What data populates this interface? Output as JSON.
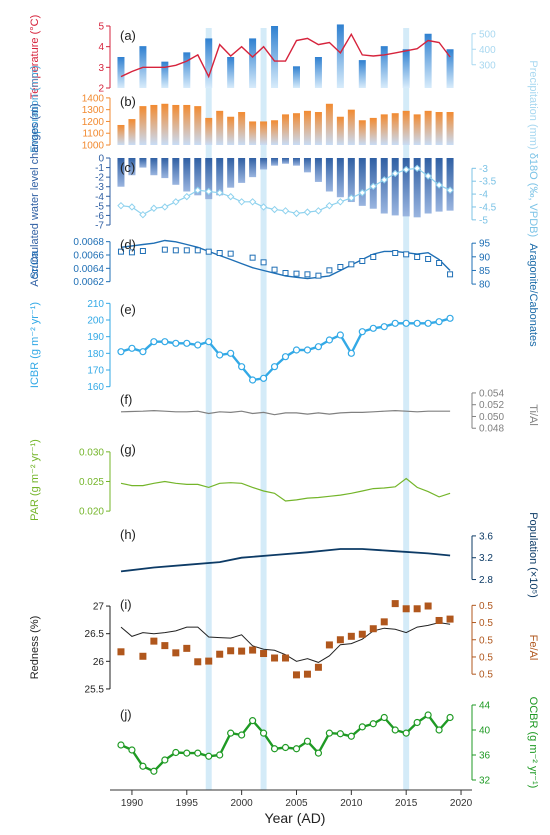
{
  "figure": {
    "xlabel": "Year (AD)",
    "x_ticks": [
      1990,
      1995,
      2000,
      2005,
      2010,
      2015,
      2020
    ],
    "xlim": [
      1988,
      2021
    ],
    "highlight_years": [
      1997,
      2002,
      2015
    ]
  },
  "chart_data": [
    {
      "id": "a",
      "panel_label": "(a)",
      "type": "bar",
      "series": [
        {
          "name": "Temperature",
          "type": "line",
          "axis": "left",
          "color": "#d6233c",
          "ylabel": "Temperature (°C)",
          "ylim": [
            2,
            5
          ],
          "ticks": [
            2,
            3,
            4,
            5
          ],
          "x": [
            1989,
            1990,
            1991,
            1992,
            1993,
            1994,
            1995,
            1996,
            1997,
            1998,
            1999,
            2000,
            2001,
            2002,
            2003,
            2004,
            2005,
            2006,
            2007,
            2008,
            2009,
            2010,
            2011,
            2012,
            2013,
            2014,
            2015,
            2016,
            2017,
            2018,
            2019
          ],
          "values": [
            2.55,
            2.8,
            3.0,
            3.0,
            3.0,
            3.1,
            3.3,
            3.6,
            2.55,
            4.1,
            3.55,
            4.0,
            3.5,
            4.0,
            3.3,
            3.3,
            4.3,
            4.4,
            4.1,
            4.2,
            3.7,
            4.6,
            3.6,
            3.55,
            3.6,
            3.7,
            3.8,
            3.9,
            4.3,
            4.2,
            3.5
          ]
        },
        {
          "name": "Precipitation",
          "type": "bar",
          "axis": "right",
          "color": "#3a8fd8",
          "ylabel": "Precipitation (mm)",
          "ylim": [
            150,
            550
          ],
          "ticks": [
            300,
            400,
            500
          ],
          "x": [
            1989,
            1991,
            1993,
            1995,
            1997,
            1999,
            2001,
            2003,
            2005,
            2007,
            2009,
            2011,
            2013,
            2015,
            2017,
            2019
          ],
          "values": [
            350,
            420,
            320,
            380,
            470,
            350,
            470,
            550,
            290,
            350,
            560,
            330,
            420,
            400,
            500,
            400
          ]
        }
      ]
    },
    {
      "id": "b",
      "panel_label": "(b)",
      "type": "bar",
      "ylabel": "Evaporation (mm)",
      "ylim": [
        1000,
        1450
      ],
      "ticks": [
        1000,
        1100,
        1200,
        1300,
        1400
      ],
      "x": [
        1989,
        1990,
        1991,
        1992,
        1993,
        1994,
        1995,
        1996,
        1997,
        1998,
        1999,
        2000,
        2001,
        2002,
        2003,
        2004,
        2005,
        2006,
        2007,
        2008,
        2009,
        2010,
        2011,
        2012,
        2013,
        2014,
        2015,
        2016,
        2017,
        2018,
        2019
      ],
      "values": [
        1170,
        1220,
        1330,
        1340,
        1350,
        1340,
        1340,
        1330,
        1230,
        1290,
        1240,
        1280,
        1200,
        1200,
        1210,
        1260,
        1270,
        1290,
        1280,
        1350,
        1240,
        1300,
        1210,
        1230,
        1260,
        1270,
        1290,
        1260,
        1290,
        1280,
        1280
      ],
      "color": "#f28a30"
    },
    {
      "id": "c",
      "panel_label": "(c)",
      "type": "bar",
      "series": [
        {
          "name": "Accumulated water level changes",
          "type": "bar",
          "axis": "left",
          "color": "#2f5fa3",
          "ylabel": "Accumulated water level changes (m)",
          "ylim": [
            -7,
            0
          ],
          "ticks": [
            -7,
            -6,
            -5,
            -4,
            -3,
            -2,
            -1,
            0
          ],
          "x": [
            1989,
            1990,
            1991,
            1992,
            1993,
            1994,
            1995,
            1996,
            1997,
            1998,
            1999,
            2000,
            2001,
            2002,
            2003,
            2004,
            2005,
            2006,
            2007,
            2008,
            2009,
            2010,
            2011,
            2012,
            2013,
            2014,
            2015,
            2016,
            2017,
            2018,
            2019
          ],
          "values": [
            -3.0,
            -1.8,
            -1.0,
            -1.8,
            -2.1,
            -2.8,
            -3.5,
            -3.9,
            -4.3,
            -3.9,
            -3.1,
            -2.6,
            -2.0,
            -1.2,
            -0.8,
            -0.6,
            -0.8,
            -1.5,
            -2.5,
            -3.5,
            -4.1,
            -4.6,
            -5.0,
            -5.3,
            -5.8,
            -6.0,
            -6.1,
            -6.2,
            -5.8,
            -5.6,
            -5.5
          ]
        },
        {
          "name": "δ18O",
          "type": "line",
          "axis": "right",
          "color": "#8fd2ee",
          "ylabel": "δ18O (‰, VPDB)",
          "ylim": [
            -5.2,
            -2.6
          ],
          "ticks": [
            -5.0,
            -4.5,
            -4.0,
            -3.5,
            -3.0
          ],
          "x": [
            1989,
            1990,
            1991,
            1992,
            1993,
            1994,
            1995,
            1996,
            1997,
            1998,
            1999,
            2000,
            2001,
            2002,
            2003,
            2004,
            2005,
            2006,
            2007,
            2008,
            2009,
            2010,
            2011,
            2012,
            2013,
            2014,
            2015,
            2016,
            2017,
            2018,
            2019
          ],
          "values": [
            -4.45,
            -4.5,
            -4.8,
            -4.55,
            -4.5,
            -4.3,
            -4.1,
            -3.85,
            -3.9,
            -3.95,
            -4.1,
            -4.3,
            -4.3,
            -4.5,
            -4.6,
            -4.65,
            -4.75,
            -4.7,
            -4.65,
            -4.45,
            -4.3,
            -4.15,
            -3.95,
            -3.7,
            -3.45,
            -3.2,
            -3.05,
            -3.0,
            -3.3,
            -3.65,
            -3.85
          ]
        }
      ]
    },
    {
      "id": "d",
      "panel_label": "(d)",
      "type": "scatter",
      "series": [
        {
          "name": "Sr/Ca",
          "type": "scatter",
          "axis": "left",
          "color": "#1f6fb5",
          "ylabel": "Sr/Ca",
          "ylim": [
            0.006,
            0.0069
          ],
          "ticks": [
            0.0062,
            0.0064,
            0.0066,
            0.0068
          ],
          "x": [
            1989,
            1990,
            1991,
            1993,
            1994,
            1995,
            1996,
            1997,
            1998,
            1999,
            2001,
            2002,
            2003,
            2004,
            2005,
            2006,
            2007,
            2008,
            2009,
            2010,
            2011,
            2012,
            2014,
            2015,
            2016,
            2017,
            2018,
            2019
          ],
          "values": [
            0.00665,
            0.00664,
            0.00666,
            0.00668,
            0.00667,
            0.00667,
            0.00667,
            0.00665,
            0.00663,
            0.00662,
            0.00656,
            0.00649,
            0.00638,
            0.00633,
            0.00632,
            0.00631,
            0.00629,
            0.00637,
            0.00642,
            0.00646,
            0.00651,
            0.00657,
            0.00663,
            0.00661,
            0.00657,
            0.00654,
            0.00648,
            0.00631
          ]
        },
        {
          "name": "Aragonite/Cabonates",
          "type": "line",
          "axis": "right",
          "color": "#1f6fb5",
          "ylabel": "Aragonite/Cabonates",
          "ylim": [
            76,
            98
          ],
          "ticks": [
            80,
            85,
            90,
            95
          ],
          "x": [
            1989,
            1990,
            1991,
            1992,
            1993,
            1994,
            1995,
            1996,
            1997,
            1998,
            1999,
            2000,
            2001,
            2002,
            2003,
            2004,
            2005,
            2006,
            2007,
            2008,
            2009,
            2010,
            2011,
            2012,
            2013,
            2014,
            2015,
            2016,
            2017,
            2018,
            2019
          ],
          "values": [
            93.5,
            94,
            94.5,
            95,
            96,
            95.5,
            94.5,
            93.5,
            92,
            90.5,
            89,
            87.5,
            86,
            85,
            84,
            83,
            82.5,
            82,
            82.5,
            83,
            85,
            87,
            89,
            91,
            92,
            92,
            91.5,
            91,
            91.5,
            89,
            85
          ]
        }
      ]
    },
    {
      "id": "e",
      "panel_label": "(e)",
      "type": "line",
      "ylabel": "ICBR (g m⁻² yr⁻¹)",
      "ylim": [
        158,
        212
      ],
      "ticks": [
        160,
        170,
        180,
        190,
        200,
        210
      ],
      "x": [
        1989,
        1990,
        1991,
        1992,
        1993,
        1994,
        1995,
        1996,
        1997,
        1998,
        1999,
        2000,
        2001,
        2002,
        2003,
        2004,
        2005,
        2006,
        2007,
        2008,
        2009,
        2010,
        2011,
        2012,
        2013,
        2014,
        2015,
        2016,
        2017,
        2018,
        2019
      ],
      "values": [
        181,
        183,
        181,
        187,
        187,
        186,
        186,
        185,
        187,
        179,
        180,
        172,
        164,
        165,
        172,
        178,
        182,
        182,
        184,
        188,
        191,
        180,
        193,
        195,
        196,
        198,
        198,
        198,
        198,
        199,
        201
      ],
      "color": "#33a9e6"
    },
    {
      "id": "f",
      "panel_label": "(f)",
      "type": "line",
      "ylabel": "Ti/Al",
      "ylim": [
        0.046,
        0.0545
      ],
      "ticks": [
        0.048,
        0.05,
        0.052,
        0.054
      ],
      "x": [
        1989,
        1991,
        1992,
        1993,
        1994,
        1995,
        1996,
        1997,
        1998,
        1999,
        2000,
        2001,
        2002,
        2003,
        2004,
        2005,
        2006,
        2007,
        2008,
        2009,
        2010,
        2011,
        2012,
        2013,
        2014,
        2015,
        2016,
        2017,
        2018,
        2019
      ],
      "values": [
        0.0508,
        0.0509,
        0.051,
        0.0509,
        0.0508,
        0.0508,
        0.0509,
        0.0505,
        0.0508,
        0.0507,
        0.0509,
        0.0505,
        0.0507,
        0.0503,
        0.0506,
        0.0506,
        0.0504,
        0.0506,
        0.0504,
        0.0506,
        0.0507,
        0.0507,
        0.0508,
        0.0509,
        0.051,
        0.0509,
        0.0508,
        0.0509,
        0.0509,
        0.0509
      ],
      "color": "#808080"
    },
    {
      "id": "g",
      "panel_label": "(g)",
      "type": "line",
      "ylabel": "PAR (g m⁻² yr⁻¹)",
      "ylim": [
        0.0185,
        0.032
      ],
      "ticks": [
        0.02,
        0.025,
        0.03
      ],
      "x": [
        1989,
        1990,
        1991,
        1992,
        1993,
        1994,
        1995,
        1996,
        1997,
        1998,
        1999,
        2000,
        2001,
        2002,
        2003,
        2004,
        2005,
        2006,
        2007,
        2008,
        2009,
        2010,
        2011,
        2012,
        2013,
        2014,
        2015,
        2016,
        2017,
        2018,
        2019
      ],
      "values": [
        0.0247,
        0.0243,
        0.0243,
        0.0247,
        0.025,
        0.0247,
        0.0245,
        0.0245,
        0.024,
        0.0247,
        0.0248,
        0.0247,
        0.024,
        0.0234,
        0.023,
        0.0217,
        0.0219,
        0.0222,
        0.0223,
        0.0225,
        0.0227,
        0.023,
        0.0234,
        0.0238,
        0.0239,
        0.0241,
        0.0255,
        0.024,
        0.0233,
        0.0224,
        0.023
      ],
      "color": "#74b52a"
    },
    {
      "id": "h",
      "panel_label": "(h)",
      "type": "line",
      "ylabel": "Population (×10⁵)",
      "ylim": [
        2.7,
        3.8
      ],
      "ticks": [
        2.8,
        3.2,
        3.6
      ],
      "x": [
        1989,
        1992,
        1995,
        1998,
        2000,
        2003,
        2006,
        2009,
        2011,
        2014,
        2017,
        2019
      ],
      "values": [
        2.95,
        3.02,
        3.07,
        3.12,
        3.2,
        3.25,
        3.3,
        3.36,
        3.36,
        3.32,
        3.28,
        3.24
      ],
      "color": "#0d3b66"
    },
    {
      "id": "i",
      "panel_label": "(i)",
      "type": "line",
      "series": [
        {
          "name": "Redness",
          "type": "line",
          "axis": "left",
          "color": "#222222",
          "ylabel": "Redness (%)",
          "ylim": [
            25.3,
            27.2
          ],
          "ticks": [
            25.5,
            26.0,
            26.5,
            27.0
          ],
          "x": [
            1989,
            1990,
            1991,
            1992,
            1993,
            1994,
            1995,
            1996,
            1997,
            1998,
            1999,
            2000,
            2001,
            2002,
            2003,
            2004,
            2005,
            2006,
            2007,
            2008,
            2009,
            2010,
            2011,
            2012,
            2013,
            2014,
            2015,
            2016,
            2017,
            2018,
            2019
          ],
          "values": [
            26.62,
            26.45,
            26.52,
            26.5,
            26.52,
            26.55,
            26.62,
            26.62,
            26.44,
            26.43,
            26.42,
            26.48,
            26.28,
            26.22,
            26.2,
            26.12,
            26.0,
            26.05,
            25.98,
            26.1,
            26.3,
            26.32,
            26.4,
            26.55,
            26.6,
            26.58,
            26.52,
            26.62,
            26.65,
            26.7,
            26.67
          ]
        },
        {
          "name": "Fe/Al",
          "type": "scatter",
          "axis": "right",
          "color": "#b0571d",
          "ylabel": "Fe/Al",
          "ylim": [
            0.4875,
            0.518
          ],
          "ticks": [
            0.495,
            0.5,
            0.505,
            0.51,
            0.515
          ],
          "x": [
            1989,
            1991,
            1992,
            1993,
            1994,
            1995,
            1996,
            1997,
            1998,
            1999,
            2000,
            2001,
            2002,
            2003,
            2004,
            2005,
            2006,
            2007,
            2008,
            2009,
            2010,
            2011,
            2012,
            2013,
            2014,
            2015,
            2016,
            2017,
            2018,
            2019
          ],
          "values": [
            0.5015,
            0.5002,
            0.5046,
            0.5033,
            0.5012,
            0.5025,
            0.4986,
            0.4988,
            0.5008,
            0.5018,
            0.5017,
            0.502,
            0.501,
            0.4997,
            0.4997,
            0.4948,
            0.495,
            0.497,
            0.5035,
            0.505,
            0.506,
            0.5066,
            0.5082,
            0.5102,
            0.5155,
            0.514,
            0.514,
            0.5148,
            0.5106,
            0.511
          ],
          "size": "square"
        }
      ]
    },
    {
      "id": "j",
      "panel_label": "(j)",
      "type": "line",
      "ylabel": "OCBR (g m⁻² yr⁻¹)",
      "ylim": [
        32,
        44
      ],
      "ticks": [
        32,
        36,
        40,
        44
      ],
      "x": [
        1989,
        1990,
        1991,
        1992,
        1993,
        1994,
        1995,
        1996,
        1997,
        1998,
        1999,
        2000,
        2001,
        2002,
        2003,
        2004,
        2005,
        2006,
        2007,
        2008,
        2009,
        2010,
        2011,
        2012,
        2013,
        2014,
        2015,
        2016,
        2017,
        2018,
        2019
      ],
      "values": [
        37.6,
        36.8,
        34.2,
        33.4,
        35.2,
        36.4,
        36.3,
        36.3,
        35.8,
        36.0,
        39.5,
        39.2,
        41.5,
        39.5,
        37.0,
        37.2,
        37.0,
        38.2,
        36.3,
        39.5,
        39.4,
        39.0,
        40.5,
        41.0,
        42.0,
        40.0,
        39.5,
        41.2,
        42.4,
        40.0,
        42.0
      ],
      "color": "#1f9a24"
    }
  ]
}
